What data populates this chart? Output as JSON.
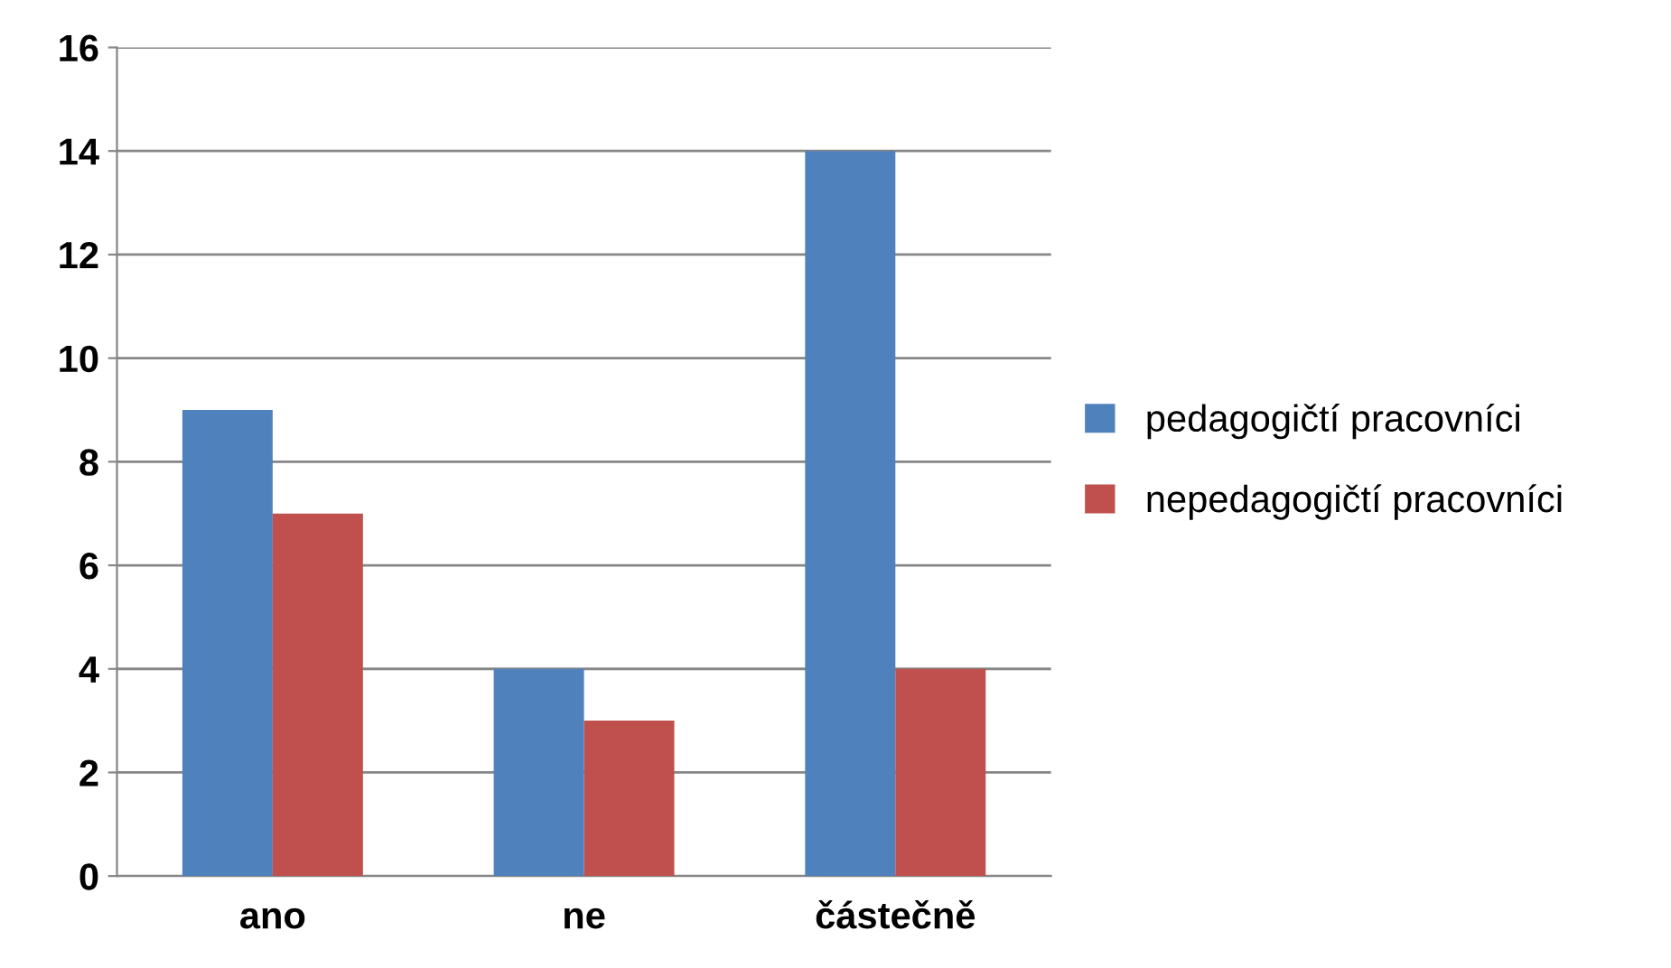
{
  "chart_data": {
    "type": "bar",
    "categories": [
      "ano",
      "ne",
      "částečně"
    ],
    "series": [
      {
        "name": "pedagogičtí pracovníci",
        "color": "#4f81bd",
        "values": [
          9,
          4,
          14
        ]
      },
      {
        "name": "nepedagogičtí pracovníci",
        "color": "#c0504d",
        "values": [
          7,
          3,
          4
        ]
      }
    ],
    "ylim": [
      0,
      16
    ],
    "yticks": [
      0,
      2,
      4,
      6,
      8,
      10,
      12,
      14,
      16
    ],
    "grid": "y",
    "legend": "right"
  }
}
